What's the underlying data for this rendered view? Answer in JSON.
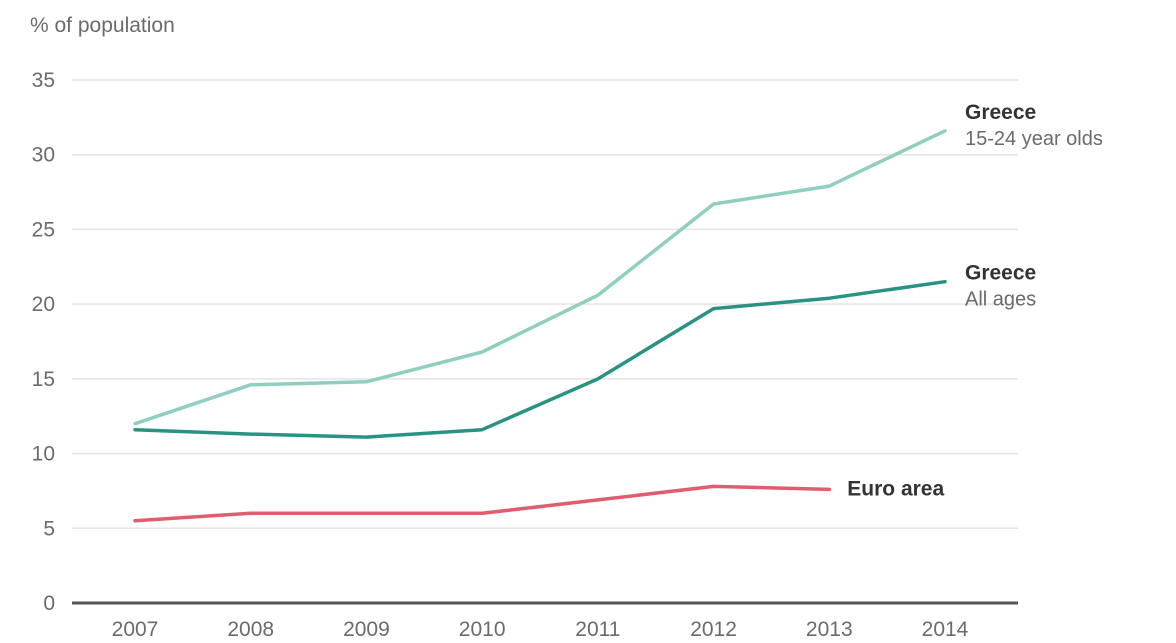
{
  "chart_data": {
    "type": "line",
    "title": "",
    "ylabel": "% of population",
    "xlabel": "",
    "x": [
      "2007",
      "2008",
      "2009",
      "2010",
      "2011",
      "2012",
      "2013",
      "2014"
    ],
    "yticks": [
      0,
      5,
      10,
      15,
      20,
      25,
      30,
      35
    ],
    "ylim": [
      0,
      35
    ],
    "grid": true,
    "series": [
      {
        "name": "Greece",
        "subtitle": "15-24 year olds",
        "color": "#8fcfbf",
        "values": [
          12.0,
          14.6,
          14.8,
          16.8,
          20.6,
          26.7,
          27.9,
          31.6
        ]
      },
      {
        "name": "Greece",
        "subtitle": "All ages",
        "color": "#2a9283",
        "values": [
          11.6,
          11.3,
          11.1,
          11.6,
          15.0,
          19.7,
          20.4,
          21.5
        ]
      },
      {
        "name": "Euro area",
        "subtitle": "",
        "color": "#e05d6f",
        "values": [
          5.5,
          6.0,
          6.0,
          6.0,
          6.9,
          7.8,
          7.6,
          null
        ]
      }
    ]
  }
}
